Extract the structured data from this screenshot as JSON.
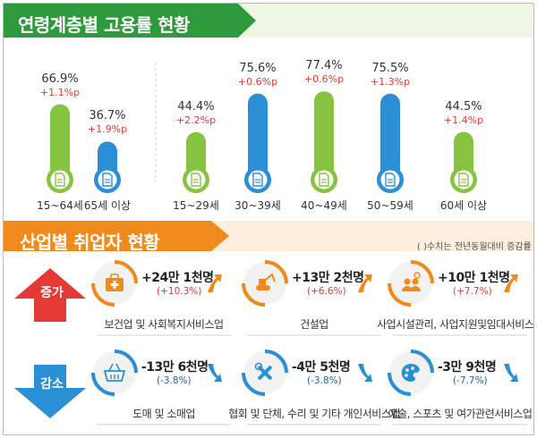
{
  "section1": {
    "title": "연령계층별 고용률 현황"
  },
  "section2": {
    "title": "산업별 취업자 현황",
    "note": "( )수치는 전년동월대비 증감률"
  },
  "chart_data": {
    "type": "bar",
    "title": "연령계층별 고용률 현황",
    "categories": [
      "15~64세",
      "65세 이상",
      "15~29세",
      "30~39세",
      "40~49세",
      "50~59세",
      "60세 이상"
    ],
    "values": [
      66.9,
      36.7,
      44.4,
      75.6,
      77.4,
      75.5,
      44.5
    ],
    "value_labels": [
      "66.9%",
      "36.7%",
      "44.4%",
      "75.6%",
      "77.4%",
      "75.5%",
      "44.5%"
    ],
    "change_labels": [
      "+1.1%p",
      "+1.9%p",
      "+2.2%p",
      "+0.6%p",
      "+0.6%p",
      "+1.3%p",
      "+1.4%p"
    ],
    "bar_colors": [
      "#86c341",
      "#2b8fd6",
      "#86c341",
      "#2b8fd6",
      "#86c341",
      "#2b8fd6",
      "#86c341"
    ],
    "ylim": [
      0,
      100
    ]
  },
  "industry": {
    "increase_label": "증가",
    "decrease_label": "감소",
    "increase": [
      {
        "name": "보건업 및 사회복지서비스업",
        "value": "+24만 1천명",
        "pct": "(+10.3%)",
        "icon": "first-aid-kit-icon"
      },
      {
        "name": "건설업",
        "value": "+13만 2천명",
        "pct": "(+6.6%)",
        "icon": "excavator-icon"
      },
      {
        "name": "사업시설관리, 사업지원및임대서비스업",
        "value": "+10만 1천명",
        "pct": "(+7.7%)",
        "icon": "business-people-icon"
      }
    ],
    "decrease": [
      {
        "name": "도매 및 소매업",
        "value": "-13만 6천명",
        "pct": "(-3.8%)",
        "icon": "shopping-basket-icon"
      },
      {
        "name": "협회 및 단체, 수리 및 기타 개인서비스업",
        "value": "-4만 5천명",
        "pct": "(-3.8%)",
        "icon": "wrench-tools-icon"
      },
      {
        "name": "예술, 스포츠 및 여가관련서비스업",
        "value": "-3만 9천명",
        "pct": "(-7.7%)",
        "icon": "paint-palette-icon"
      }
    ]
  },
  "colors": {
    "green": "#86c341",
    "blue": "#2b8fd6",
    "orange": "#f08a1c",
    "red": "#e53935",
    "navy": "#1f5fa8"
  }
}
